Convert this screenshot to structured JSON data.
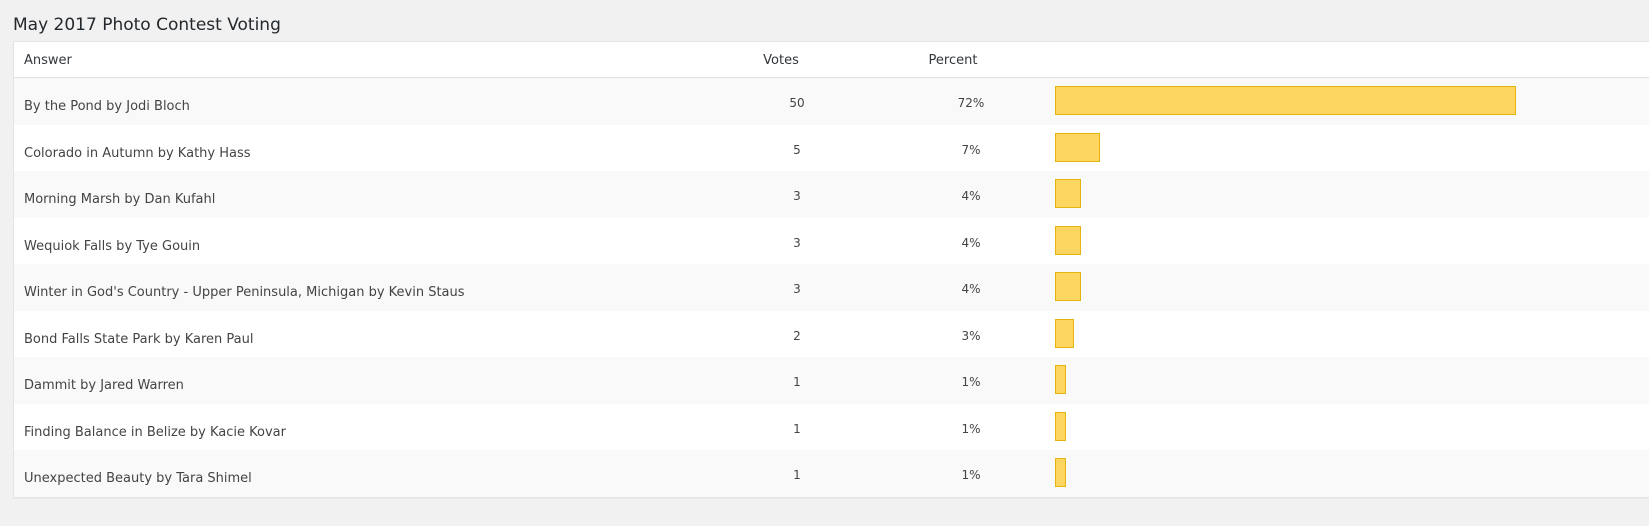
{
  "page": {
    "title": "May 2017 Photo Contest Voting"
  },
  "table": {
    "headers": {
      "answer": "Answer",
      "votes": "Votes",
      "percent": "Percent"
    },
    "bar_color": "#fcd661",
    "bar_border_color": "#e5b410",
    "rows": [
      {
        "answer": "By the Pond by Jodi Bloch",
        "votes": "50",
        "percent": "72%",
        "fraction": 0.72
      },
      {
        "answer": "Colorado in Autumn by Kathy Hass",
        "votes": "5",
        "percent": "7%",
        "fraction": 0.07
      },
      {
        "answer": "Morning Marsh by Dan Kufahl",
        "votes": "3",
        "percent": "4%",
        "fraction": 0.04
      },
      {
        "answer": "Wequiok Falls by Tye Gouin",
        "votes": "3",
        "percent": "4%",
        "fraction": 0.04
      },
      {
        "answer": "Winter in God's Country - Upper Peninsula, Michigan by Kevin Staus",
        "votes": "3",
        "percent": "4%",
        "fraction": 0.04
      },
      {
        "answer": "Bond Falls State Park by Karen Paul",
        "votes": "2",
        "percent": "3%",
        "fraction": 0.03
      },
      {
        "answer": "Dammit by Jared Warren",
        "votes": "1",
        "percent": "1%",
        "fraction": 0.01
      },
      {
        "answer": "Finding Balance in Belize by Kacie Kovar",
        "votes": "1",
        "percent": "1%",
        "fraction": 0.01
      },
      {
        "answer": "Unexpected Beauty by Tara Shimel",
        "votes": "1",
        "percent": "1%",
        "fraction": 0.01
      }
    ]
  }
}
